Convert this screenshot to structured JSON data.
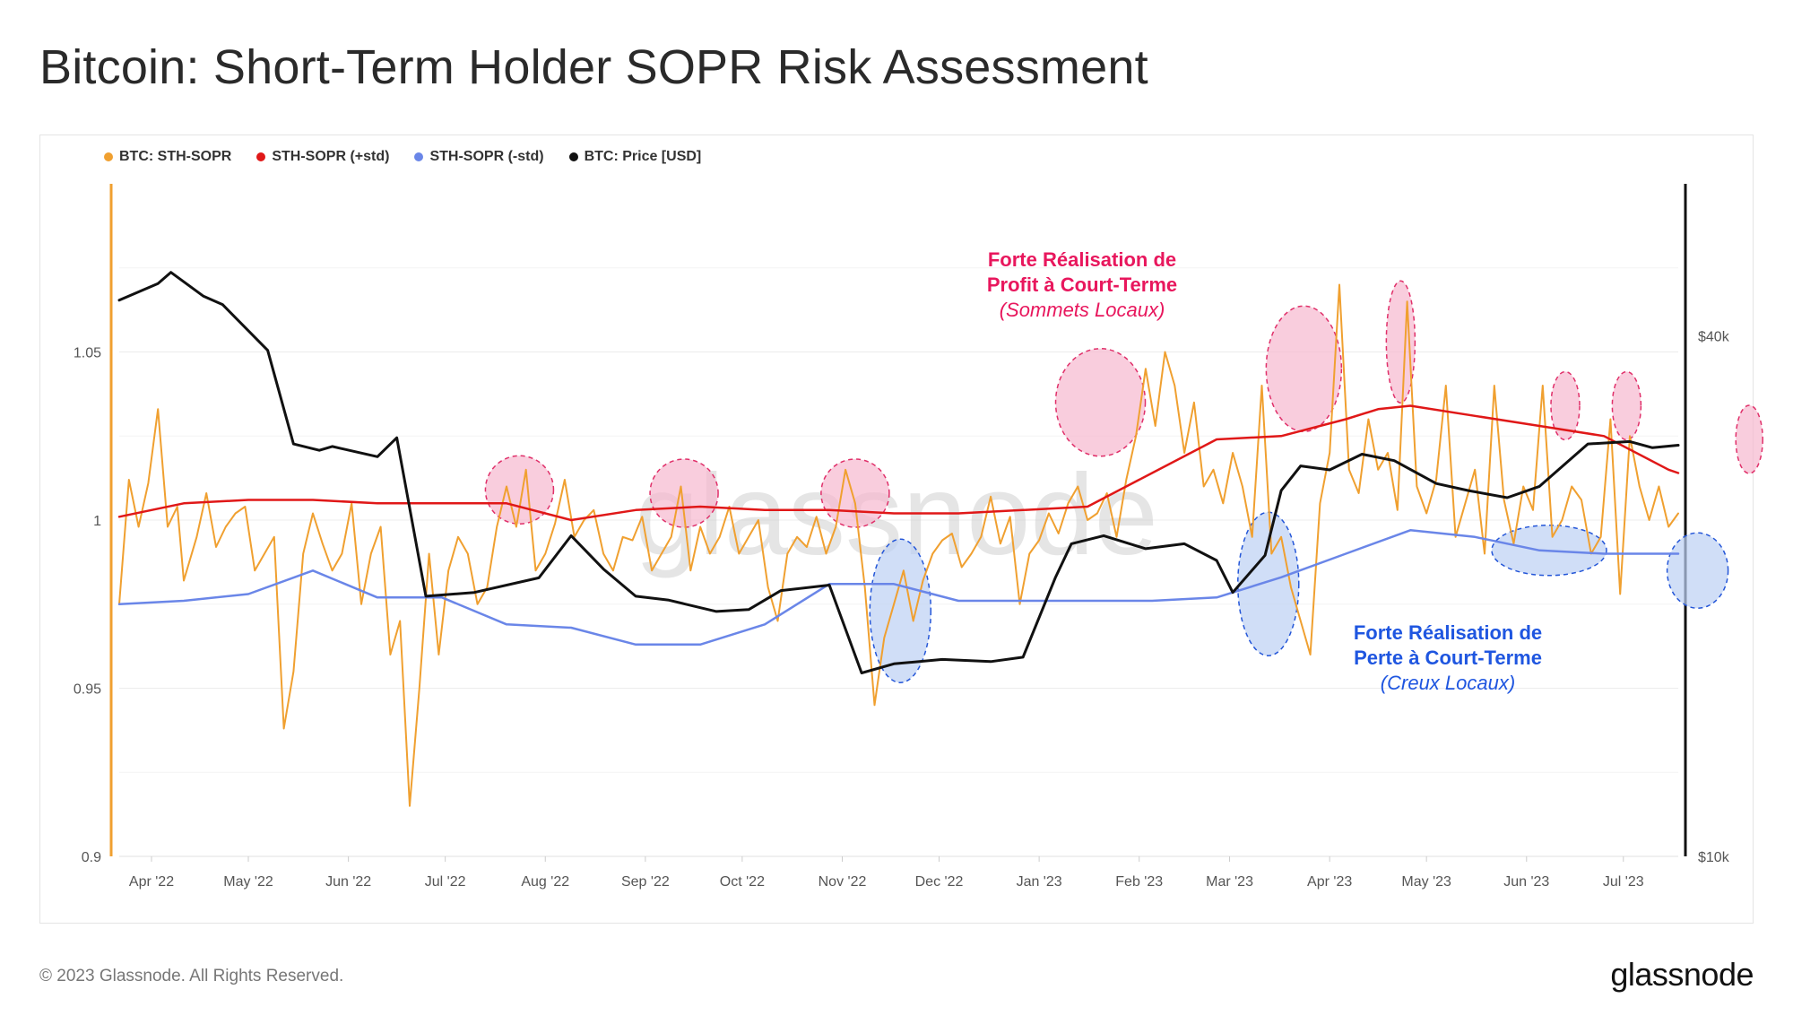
{
  "title": "Bitcoin: Short-Term Holder SOPR Risk Assessment",
  "footer": {
    "copyright": "© 2023 Glassnode. All Rights Reserved.",
    "brand": "glassnode"
  },
  "watermark": "glassnode",
  "colors": {
    "sopr": "#f0a030",
    "upper": "#e01818",
    "lower": "#6a86e8",
    "price": "#111111",
    "profit_zone": "#f7b8cf",
    "profit_zone_border": "#e0306a",
    "loss_zone": "#bcd0f4",
    "loss_zone_border": "#2456d8",
    "profit_text": "#e8175d",
    "loss_text": "#1f56e0"
  },
  "chart_data": {
    "type": "line",
    "legend": [
      {
        "name": "BTC: STH-SOPR",
        "color": "#f0a030"
      },
      {
        "name": "STH-SOPR (+std)",
        "color": "#e01818"
      },
      {
        "name": "STH-SOPR (-std)",
        "color": "#6a86e8"
      },
      {
        "name": "BTC: Price [USD]",
        "color": "#111111"
      }
    ],
    "legend_position": "top-left",
    "x_ticks": [
      "Apr '22",
      "May '22",
      "Jun '22",
      "Jul '22",
      "Aug '22",
      "Sep '22",
      "Oct '22",
      "Nov '22",
      "Dec '22",
      "Jan '23",
      "Feb '23",
      "Mar '23",
      "Apr '23",
      "May '23",
      "Jun '23",
      "Jul '23"
    ],
    "x_range_days": [
      0,
      483
    ],
    "y_left": {
      "ticks": [
        "0.9",
        "0.95",
        "1",
        "1.05"
      ],
      "values": [
        0.9,
        0.95,
        1.0,
        1.05
      ],
      "range": [
        0.9,
        1.1
      ]
    },
    "y_right": {
      "ticks": [
        "$10k",
        "$40k"
      ],
      "values": [
        10000,
        40000
      ],
      "scale": "log",
      "range": [
        10000,
        60000
      ]
    },
    "grid": "horizontal",
    "series": [
      {
        "name": "STH-SOPR (+std)",
        "axis": "left",
        "x": [
          0,
          20,
          40,
          60,
          80,
          100,
          120,
          140,
          160,
          180,
          200,
          220,
          240,
          260,
          280,
          300,
          320,
          340,
          360,
          380,
          390,
          400,
          420,
          440,
          460,
          480,
          483
        ],
        "values": [
          1.001,
          1.005,
          1.006,
          1.006,
          1.005,
          1.005,
          1.005,
          1.0,
          1.003,
          1.004,
          1.003,
          1.003,
          1.002,
          1.002,
          1.003,
          1.004,
          1.014,
          1.024,
          1.025,
          1.03,
          1.033,
          1.034,
          1.031,
          1.028,
          1.025,
          1.015,
          1.014
        ]
      },
      {
        "name": "STH-SOPR (-std)",
        "axis": "left",
        "x": [
          0,
          20,
          40,
          60,
          80,
          100,
          120,
          140,
          160,
          180,
          200,
          220,
          240,
          260,
          280,
          300,
          320,
          340,
          360,
          380,
          400,
          420,
          440,
          460,
          483
        ],
        "values": [
          0.975,
          0.976,
          0.978,
          0.985,
          0.977,
          0.977,
          0.969,
          0.968,
          0.963,
          0.963,
          0.969,
          0.981,
          0.981,
          0.976,
          0.976,
          0.976,
          0.976,
          0.977,
          0.983,
          0.99,
          0.997,
          0.995,
          0.991,
          0.99,
          0.99
        ]
      },
      {
        "name": "BTC: Price [USD]",
        "axis": "right",
        "x": [
          0,
          12,
          16,
          26,
          32,
          46,
          54,
          62,
          66,
          80,
          86,
          95,
          110,
          130,
          140,
          150,
          160,
          170,
          185,
          195,
          205,
          220,
          230,
          240,
          255,
          270,
          280,
          290,
          295,
          305,
          318,
          330,
          340,
          345,
          355,
          360,
          366,
          375,
          385,
          395,
          408,
          418,
          430,
          440,
          455,
          468,
          475,
          483
        ],
        "values": [
          44000,
          46000,
          47400,
          44500,
          43500,
          38500,
          30000,
          29500,
          29800,
          29000,
          30500,
          20000,
          20200,
          21000,
          23500,
          21500,
          20000,
          19800,
          19200,
          19300,
          20300,
          20600,
          16300,
          16700,
          16900,
          16800,
          17000,
          21000,
          23000,
          23500,
          22700,
          23000,
          22000,
          20200,
          22300,
          26500,
          28300,
          28000,
          29200,
          28700,
          27000,
          26500,
          26000,
          26800,
          30000,
          30200,
          29700,
          29900
        ]
      },
      {
        "name": "BTC: STH-SOPR",
        "axis": "left",
        "x": [
          0,
          3,
          6,
          9,
          12,
          15,
          18,
          20,
          24,
          27,
          30,
          33,
          36,
          39,
          42,
          45,
          48,
          51,
          54,
          57,
          60,
          63,
          66,
          69,
          72,
          75,
          78,
          81,
          84,
          87,
          90,
          93,
          96,
          99,
          102,
          105,
          108,
          111,
          114,
          117,
          120,
          123,
          126,
          129,
          132,
          135,
          138,
          141,
          144,
          147,
          150,
          153,
          156,
          159,
          162,
          165,
          168,
          171,
          174,
          177,
          180,
          183,
          186,
          189,
          192,
          195,
          198,
          201,
          204,
          207,
          210,
          213,
          216,
          219,
          222,
          225,
          228,
          231,
          234,
          237,
          240,
          243,
          246,
          249,
          252,
          255,
          258,
          261,
          264,
          267,
          270,
          273,
          276,
          279,
          282,
          285,
          288,
          291,
          294,
          297,
          300,
          303,
          306,
          309,
          312,
          315,
          318,
          321,
          324,
          327,
          330,
          333,
          336,
          339,
          342,
          345,
          348,
          351,
          354,
          357,
          360,
          363,
          366,
          369,
          372,
          375,
          378,
          381,
          384,
          387,
          390,
          393,
          396,
          399,
          402,
          405,
          408,
          411,
          414,
          417,
          420,
          423,
          426,
          429,
          432,
          435,
          438,
          441,
          444,
          447,
          450,
          453,
          456,
          459,
          462,
          465,
          468,
          471,
          474,
          477,
          480,
          483
        ],
        "values": [
          0.975,
          1.012,
          0.998,
          1.011,
          1.033,
          0.998,
          1.004,
          0.982,
          0.995,
          1.008,
          0.992,
          0.998,
          1.002,
          1.004,
          0.985,
          0.99,
          0.995,
          0.938,
          0.955,
          0.99,
          1.002,
          0.993,
          0.985,
          0.99,
          1.005,
          0.975,
          0.99,
          0.998,
          0.96,
          0.97,
          0.915,
          0.95,
          0.99,
          0.96,
          0.985,
          0.995,
          0.99,
          0.975,
          0.98,
          0.998,
          1.01,
          0.998,
          1.015,
          0.985,
          0.99,
          0.999,
          1.012,
          0.995,
          1.0,
          1.003,
          0.99,
          0.985,
          0.995,
          0.994,
          1.001,
          0.985,
          0.99,
          0.995,
          1.01,
          0.985,
          0.998,
          0.99,
          0.995,
          1.004,
          0.99,
          0.995,
          1.0,
          0.98,
          0.97,
          0.99,
          0.995,
          0.992,
          1.001,
          0.99,
          0.998,
          1.015,
          1.005,
          0.98,
          0.945,
          0.965,
          0.975,
          0.985,
          0.97,
          0.982,
          0.99,
          0.994,
          0.996,
          0.986,
          0.99,
          0.995,
          1.007,
          0.993,
          1.001,
          0.975,
          0.99,
          0.994,
          1.002,
          0.996,
          1.005,
          1.01,
          1.0,
          1.002,
          1.008,
          0.995,
          1.012,
          1.025,
          1.045,
          1.028,
          1.05,
          1.04,
          1.02,
          1.035,
          1.01,
          1.015,
          1.005,
          1.02,
          1.01,
          0.995,
          1.04,
          0.99,
          0.995,
          0.98,
          0.97,
          0.96,
          1.005,
          1.02,
          1.07,
          1.015,
          1.008,
          1.03,
          1.015,
          1.02,
          1.003,
          1.065,
          1.01,
          1.002,
          1.012,
          1.04,
          0.995,
          1.005,
          1.015,
          0.99,
          1.04,
          1.006,
          0.993,
          1.01,
          1.003,
          1.04,
          0.995,
          1.0,
          1.01,
          1.006,
          0.99,
          0.995,
          1.03,
          0.978,
          1.025,
          1.01,
          1.0,
          1.01,
          0.998,
          1.002
        ]
      }
    ],
    "annotations": [
      {
        "kind": "profit",
        "lines": [
          "Forte Réalisation de",
          "Profit à Court-Terme"
        ],
        "sub": "(Sommets Locaux)"
      },
      {
        "kind": "loss",
        "lines": [
          "Forte Réalisation de",
          "Perte à Court-Terme"
        ],
        "sub": "(Creux Locaux)"
      }
    ],
    "profit_zones": [
      {
        "x": 124,
        "y": 1.009
      },
      {
        "x": 175,
        "y": 1.008
      },
      {
        "x": 228,
        "y": 1.008
      },
      {
        "x": 304,
        "y": 1.035
      },
      {
        "x": 367,
        "y": 1.045
      },
      {
        "x": 397,
        "y": 1.053
      },
      {
        "x": 448,
        "y": 1.034
      },
      {
        "x": 467,
        "y": 1.034
      },
      {
        "x": 505,
        "y": 1.024
      }
    ],
    "loss_zones": [
      {
        "x": 242,
        "y": 0.973
      },
      {
        "x": 356,
        "y": 0.981
      },
      {
        "x": 443,
        "y": 0.991
      },
      {
        "x": 489,
        "y": 0.985
      }
    ]
  }
}
